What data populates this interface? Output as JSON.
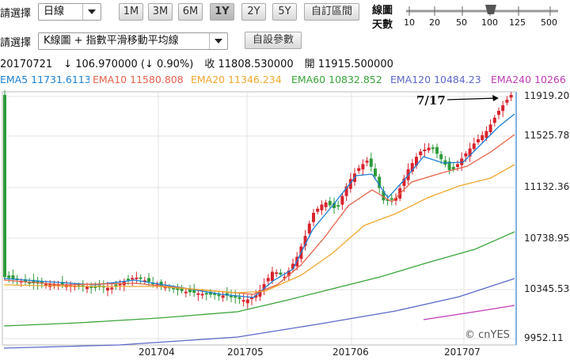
{
  "toolbar": {
    "freq_label": "請選擇",
    "freq_value": "日線",
    "ranges": [
      "1M",
      "3M",
      "6M",
      "1Y",
      "2Y",
      "5Y",
      "自訂區間"
    ],
    "active_range": "1Y",
    "chart_type_label": "請選擇",
    "chart_type_value": "K線圖 + 指數平滑移動平均線",
    "custom_params": "自設參數",
    "days_label_1": "線圖",
    "days_label_2": "天數",
    "slider_ticks": [
      "10",
      "20",
      "50",
      "100",
      "125",
      "500"
    ],
    "slider_value": "100"
  },
  "info": {
    "date": "20170721",
    "change": "↓ 106.970000 (↓ 0.90%)",
    "close": "收 11808.530000",
    "open": "開 11915.500000"
  },
  "legend": [
    {
      "text": "EMA5 11731.6113",
      "color": "#1a7fd4"
    },
    {
      "text": "EMA10 11580.808",
      "color": "#e8624a"
    },
    {
      "text": "EMA20 11346.234",
      "color": "#f0a830"
    },
    {
      "text": "EMA60 10832.852",
      "color": "#3aa53a"
    },
    {
      "text": "EMA120 10484.23",
      "color": "#5b69c9"
    },
    {
      "text": "EMA240 10266",
      "color": "#c03bb8"
    }
  ],
  "annotation": "7/17",
  "watermark": "© cnYES",
  "chart_data": {
    "type": "candlestick",
    "y_ticks": [
      "11919.20",
      "11525.78",
      "11132.36",
      "10738.95",
      "10345.53",
      "9952.11"
    ],
    "x_ticks": [
      "201704",
      "201705",
      "201706",
      "201707"
    ],
    "ylim": [
      9952.11,
      11919.2
    ]
  }
}
